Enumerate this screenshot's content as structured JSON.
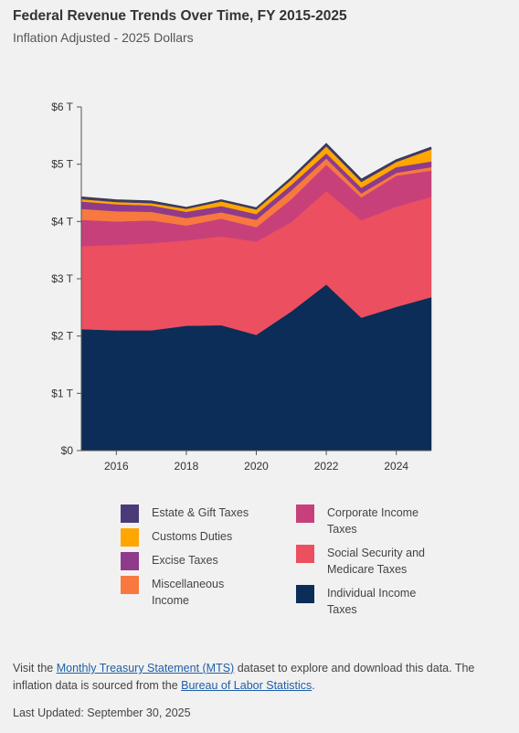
{
  "title": "Federal Revenue Trends Over Time, FY 2015-2025",
  "subtitle": "Inflation Adjusted - 2025 Dollars",
  "chart_data": {
    "type": "area",
    "stacked": true,
    "x": [
      2015,
      2016,
      2017,
      2018,
      2019,
      2020,
      2021,
      2022,
      2023,
      2024,
      2025
    ],
    "x_ticks": [
      "2016",
      "2018",
      "2020",
      "2022",
      "2024"
    ],
    "y_ticks": [
      "$0",
      "$1 T",
      "$2 T",
      "$3 T",
      "$4 T",
      "$5 T",
      "$6 T"
    ],
    "ylim": [
      0,
      6
    ],
    "series": [
      {
        "name": "Individual Income Taxes",
        "color": "#0b2d57",
        "values": [
          2.12,
          2.1,
          2.1,
          2.18,
          2.19,
          2.02,
          2.43,
          2.9,
          2.32,
          2.51,
          2.68
        ]
      },
      {
        "name": "Social Security and Medicare Taxes",
        "color": "#ec4f60",
        "values": [
          1.45,
          1.49,
          1.52,
          1.49,
          1.55,
          1.63,
          1.56,
          1.63,
          1.7,
          1.75,
          1.75
        ]
      },
      {
        "name": "Corporate Income Taxes",
        "color": "#c8407a",
        "values": [
          0.46,
          0.41,
          0.4,
          0.26,
          0.31,
          0.25,
          0.4,
          0.46,
          0.4,
          0.54,
          0.46
        ]
      },
      {
        "name": "Miscellaneous Income",
        "color": "#f7793f",
        "values": [
          0.19,
          0.18,
          0.15,
          0.13,
          0.11,
          0.13,
          0.15,
          0.11,
          0.07,
          0.05,
          0.06
        ]
      },
      {
        "name": "Excise Taxes",
        "color": "#8f3a8a",
        "values": [
          0.13,
          0.12,
          0.11,
          0.11,
          0.11,
          0.1,
          0.1,
          0.09,
          0.1,
          0.1,
          0.1
        ]
      },
      {
        "name": "Customs Duties",
        "color": "#ffa600",
        "values": [
          0.04,
          0.04,
          0.04,
          0.05,
          0.08,
          0.08,
          0.09,
          0.12,
          0.1,
          0.09,
          0.21
        ]
      },
      {
        "name": "Estate & Gift Taxes",
        "color": "#4b3a78",
        "values": [
          0.03,
          0.03,
          0.03,
          0.02,
          0.02,
          0.02,
          0.03,
          0.04,
          0.04,
          0.03,
          0.03
        ]
      }
    ],
    "grid": false,
    "legend_placement": "bottom"
  },
  "legend": {
    "left": [
      {
        "label": "Estate & Gift Taxes",
        "color": "#4b3a78"
      },
      {
        "label": "Customs Duties",
        "color": "#ffa600"
      },
      {
        "label": "Excise Taxes",
        "color": "#8f3a8a"
      },
      {
        "label": "Miscellaneous Income",
        "color": "#f7793f"
      }
    ],
    "right": [
      {
        "label": "Corporate Income Taxes",
        "color": "#c8407a"
      },
      {
        "label": "Social Security and Medicare Taxes",
        "color": "#ec4f60"
      },
      {
        "label": "Individual Income Taxes",
        "color": "#0b2d57"
      }
    ]
  },
  "footer": {
    "text1": "Visit the ",
    "link1": "Monthly Treasury Statement (MTS)",
    "text2": " dataset to explore and download this data. The inflation data is sourced from the ",
    "link2": "Bureau of Labor Statistics",
    "text3": "."
  },
  "last_updated": "Last Updated: September 30, 2025"
}
